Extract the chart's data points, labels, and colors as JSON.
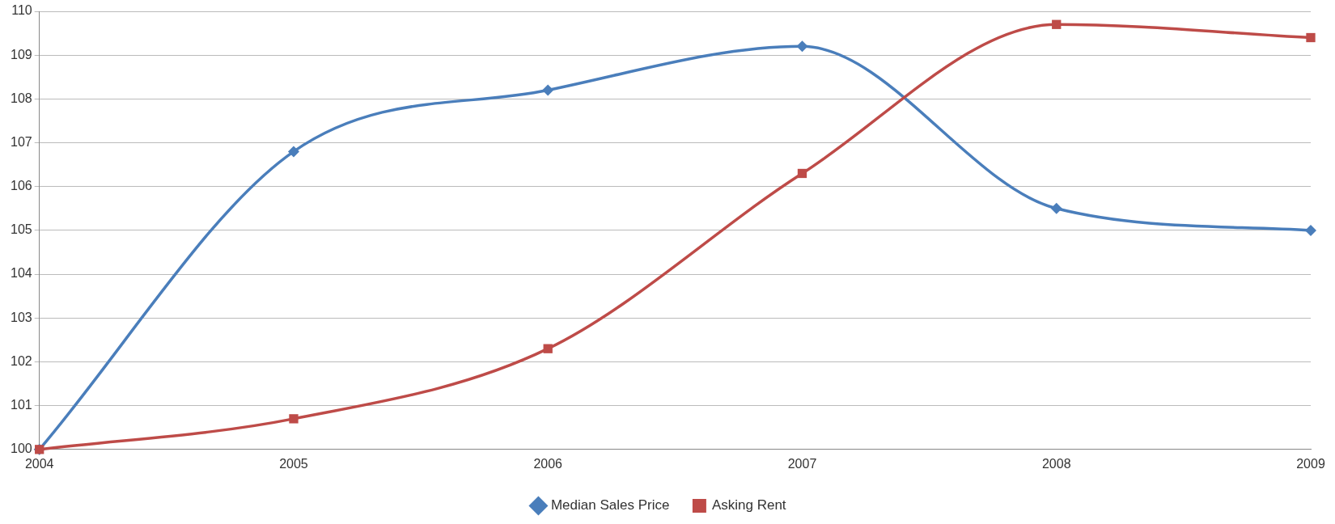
{
  "chart_data": {
    "type": "line",
    "x": [
      2004,
      2005,
      2006,
      2007,
      2008,
      2009
    ],
    "series": [
      {
        "name": "Median Sales Price",
        "color": "#4a7ebb",
        "marker": "diamond",
        "values": [
          100,
          106.8,
          108.2,
          109.2,
          105.5,
          105.0
        ]
      },
      {
        "name": "Asking Rent",
        "color": "#be4b48",
        "marker": "square",
        "values": [
          100,
          100.7,
          102.3,
          106.3,
          109.7,
          109.4
        ]
      }
    ],
    "xlim": [
      2004,
      2009
    ],
    "xticks": [
      2004,
      2005,
      2006,
      2007,
      2008,
      2009
    ],
    "ylim": [
      100,
      110
    ],
    "yticks": [
      100,
      101,
      102,
      103,
      104,
      105,
      106,
      107,
      108,
      109,
      110
    ],
    "grid": "y",
    "legend": "bottom",
    "line_style": "solid"
  }
}
